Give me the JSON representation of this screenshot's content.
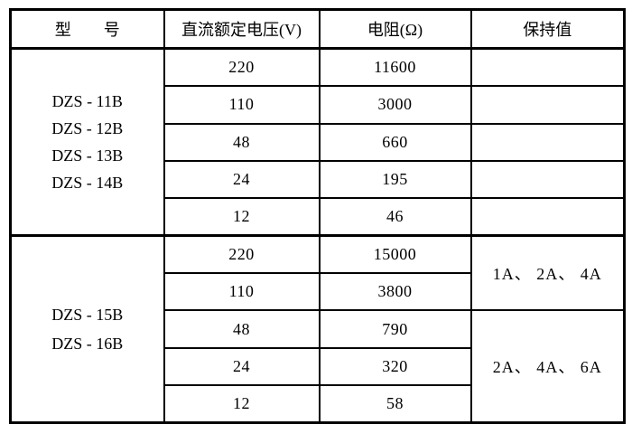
{
  "table": {
    "header": {
      "model": "型　　号",
      "voltage": "直流额定电压(V)",
      "resistance": "电阻(Ω)",
      "hold": "保持值"
    },
    "group1": {
      "models": [
        "DZS - 11B",
        "DZS - 12B",
        "DZS - 13B",
        "DZS - 14B"
      ],
      "rows": [
        {
          "voltage": "220",
          "resistance": "11600",
          "hold": ""
        },
        {
          "voltage": "110",
          "resistance": "3000",
          "hold": ""
        },
        {
          "voltage": "48",
          "resistance": "660",
          "hold": ""
        },
        {
          "voltage": "24",
          "resistance": "195",
          "hold": ""
        },
        {
          "voltage": "12",
          "resistance": "46",
          "hold": ""
        }
      ]
    },
    "group2": {
      "models": [
        "DZS - 15B",
        "DZS - 16B"
      ],
      "rows": [
        {
          "voltage": "220",
          "resistance": "15000"
        },
        {
          "voltage": "110",
          "resistance": "3800"
        },
        {
          "voltage": "48",
          "resistance": "790"
        },
        {
          "voltage": "24",
          "resistance": "320"
        },
        {
          "voltage": "12",
          "resistance": "58"
        }
      ],
      "hold_values": [
        "1A、 2A、 4A",
        "2A、 4A、 6A"
      ]
    },
    "colors": {
      "border": "#000000",
      "text": "#000000",
      "background": "#ffffff"
    }
  }
}
